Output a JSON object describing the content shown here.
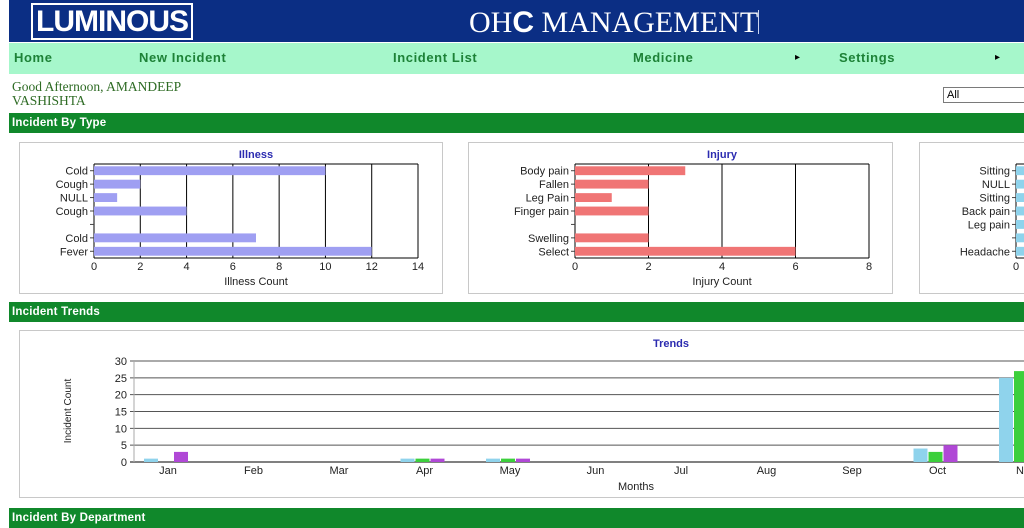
{
  "header": {
    "logo": "LUMINOUS",
    "title_prefix": "OH",
    "title_c": "C",
    "title_suffix": " MANAGEMENT"
  },
  "nav": {
    "items": [
      "Home",
      "New Incident",
      "Incident List",
      "Medicine",
      "Settings"
    ],
    "submenu_arrow": "▸"
  },
  "greeting": {
    "line1": "Good Afternoon, AMANDEEP",
    "line2": "VASHISHTA"
  },
  "filter": {
    "value": "All"
  },
  "sections": {
    "incident_by_type": "Incident By Type",
    "incident_trends": "Incident Trends",
    "incident_by_department": "Incident By Department"
  },
  "colors": {
    "topbar": "#0b2e84",
    "nav": "#a6f7cb",
    "band": "#10882b",
    "illness": "#9f9ff2",
    "injury": "#f07575",
    "posture": "#8fd3ec",
    "green": "#3ccf3c",
    "purple": "#b048d6"
  },
  "chart_data": [
    {
      "type": "bar",
      "orientation": "horizontal",
      "title": "Illness",
      "xlabel": "Illness Count",
      "categories": [
        "Cold",
        "Cough",
        "NULL",
        "Cough",
        "",
        "Cold",
        "Fever"
      ],
      "values": [
        10,
        2,
        1,
        4,
        0,
        7,
        12
      ],
      "xlim": [
        0,
        14
      ],
      "xticks": [
        0,
        2,
        4,
        6,
        8,
        10,
        12,
        14
      ]
    },
    {
      "type": "bar",
      "orientation": "horizontal",
      "title": "Injury",
      "xlabel": "Injury Count",
      "categories": [
        "Body pain",
        "Fallen",
        "Leg Pain",
        "Finger pain",
        "",
        "Swelling",
        "Select"
      ],
      "values": [
        3,
        2,
        1,
        2,
        0,
        2,
        6
      ],
      "xlim": [
        0,
        8
      ],
      "xticks": [
        0,
        2,
        4,
        6,
        8
      ]
    },
    {
      "type": "bar",
      "orientation": "horizontal",
      "categories": [
        "Sitting",
        "NULL",
        "Sitting",
        "Back pain",
        "Leg pain",
        "",
        "Headache"
      ],
      "xticks": [
        0
      ]
    },
    {
      "type": "bar",
      "title": "Trends",
      "xlabel": "Months",
      "ylabel": "Incident Count",
      "categories": [
        "Jan",
        "Feb",
        "Mar",
        "Apr",
        "May",
        "Jun",
        "Jul",
        "Aug",
        "Sep",
        "Oct",
        "No"
      ],
      "series": [
        {
          "values": [
            1,
            0,
            0,
            1,
            1,
            0,
            0,
            0,
            0,
            4,
            25
          ]
        },
        {
          "values": [
            0,
            0,
            0,
            1,
            1,
            0,
            0,
            0,
            0,
            3,
            27
          ]
        },
        {
          "values": [
            3,
            0,
            0,
            1,
            1,
            0,
            0,
            0,
            0,
            5,
            0
          ]
        }
      ],
      "ylim": [
        0,
        30
      ],
      "yticks": [
        0,
        5,
        10,
        15,
        20,
        25,
        30
      ]
    }
  ]
}
